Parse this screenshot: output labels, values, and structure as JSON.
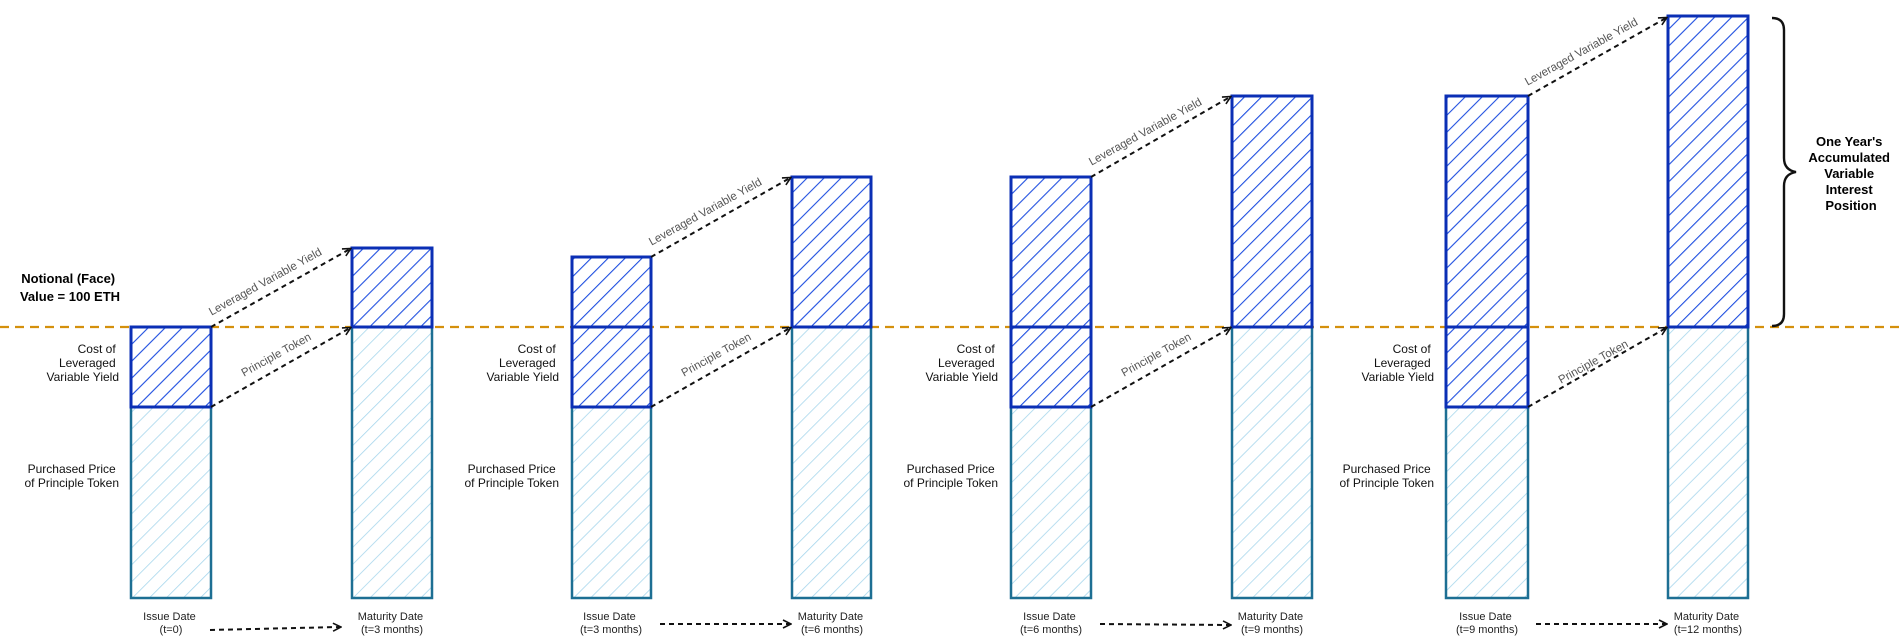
{
  "notional_label": [
    "Notional  (Face)",
    "Value = 100 ETH"
  ],
  "cost_label": [
    "Cost of",
    "Leveraged",
    "Variable Yield"
  ],
  "purchase_label": [
    "Purchased Price",
    "of Principle Token"
  ],
  "arrow_labels": {
    "variable": "Leveraged Variable Yield",
    "principle": "Principle Token"
  },
  "periods": [
    {
      "issue_date": [
        "Issue Date",
        "(t=0)"
      ],
      "maturity_date": [
        "Maturity Date",
        "(t=3 months)"
      ]
    },
    {
      "issue_date": [
        "Issue Date",
        "(t=3 months)"
      ],
      "maturity_date": [
        "Maturity Date",
        "(t=6 months)"
      ]
    },
    {
      "issue_date": [
        "Issue Date",
        "(t=6 months)"
      ],
      "maturity_date": [
        "Maturity Date",
        "(t=9 months)"
      ]
    },
    {
      "issue_date": [
        "Issue Date",
        "(t=9 months)"
      ],
      "maturity_date": [
        "Maturity Date",
        "(t=12 months)"
      ]
    }
  ],
  "position_label": [
    "One Year's",
    "Accumulated",
    "Variable",
    "Interest",
    "Position"
  ],
  "colors": {
    "notional_line": "#d4900c",
    "dark_blue": "#0b2fb5",
    "light_fill": "#a7d6ec",
    "teal_stroke": "#1d6f93"
  }
}
